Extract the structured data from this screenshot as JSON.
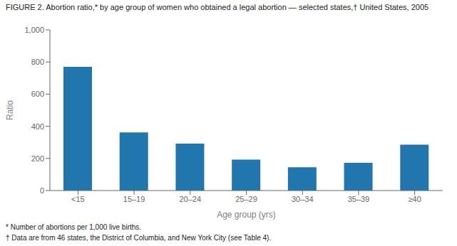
{
  "chart_data": {
    "type": "bar",
    "title": "FIGURE 2. Abortion ratio,* by age group of women who obtained a legal abortion — selected states,†  United States, 2005",
    "xlabel": "Age group (yrs)",
    "ylabel": "Ratio",
    "categories": [
      "<15",
      "15–19",
      "20–24",
      "25–29",
      "30–34",
      "35–39",
      "≥40"
    ],
    "values": [
      770,
      362,
      292,
      192,
      145,
      173,
      285
    ],
    "color": "#2176ae",
    "ylim": [
      0,
      1000
    ],
    "yticks": [
      0,
      200,
      400,
      600,
      800,
      {
        "value": 1000,
        "label": "1,000"
      }
    ],
    "grid": false,
    "annotations": [
      "* Number of abortions per 1,000 live births.",
      "† Data are from 46 states, the District of Columbia, and New York City (see Table 4)."
    ]
  }
}
